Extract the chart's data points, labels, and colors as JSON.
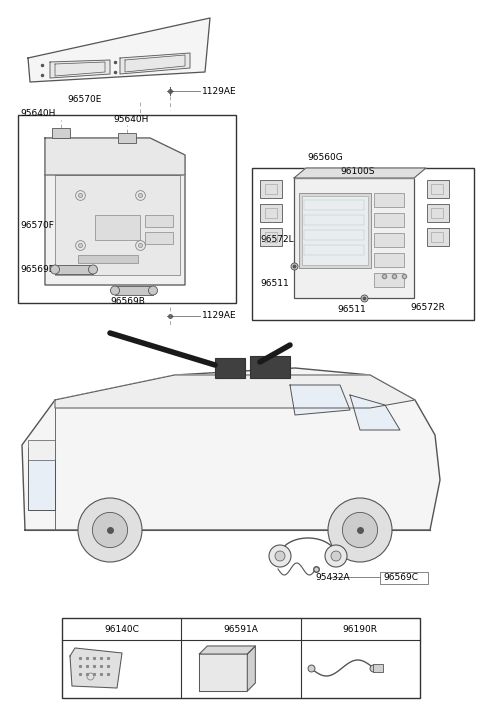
{
  "bg_color": "#ffffff",
  "lc": "#555555",
  "lc_dark": "#333333",
  "tc": "#000000",
  "fig_width": 4.8,
  "fig_height": 7.05,
  "dpi": 100,
  "labels": {
    "1129AE_top": "1129AE",
    "96570E": "96570E",
    "95640H_1": "95640H",
    "95640H_2": "95640H",
    "96570F": "96570F",
    "96569B_1": "96569B",
    "96569B_2": "96569B",
    "1129AE_mid": "1129AE",
    "96560G": "96560G",
    "96100S": "96100S",
    "96572L": "96572L",
    "96511_1": "96511",
    "96511_2": "96511",
    "96572R": "96572R",
    "96569C": "96569C",
    "95432A": "95432A",
    "96140C": "96140C",
    "96591A": "96591A",
    "96190R": "96190R"
  }
}
